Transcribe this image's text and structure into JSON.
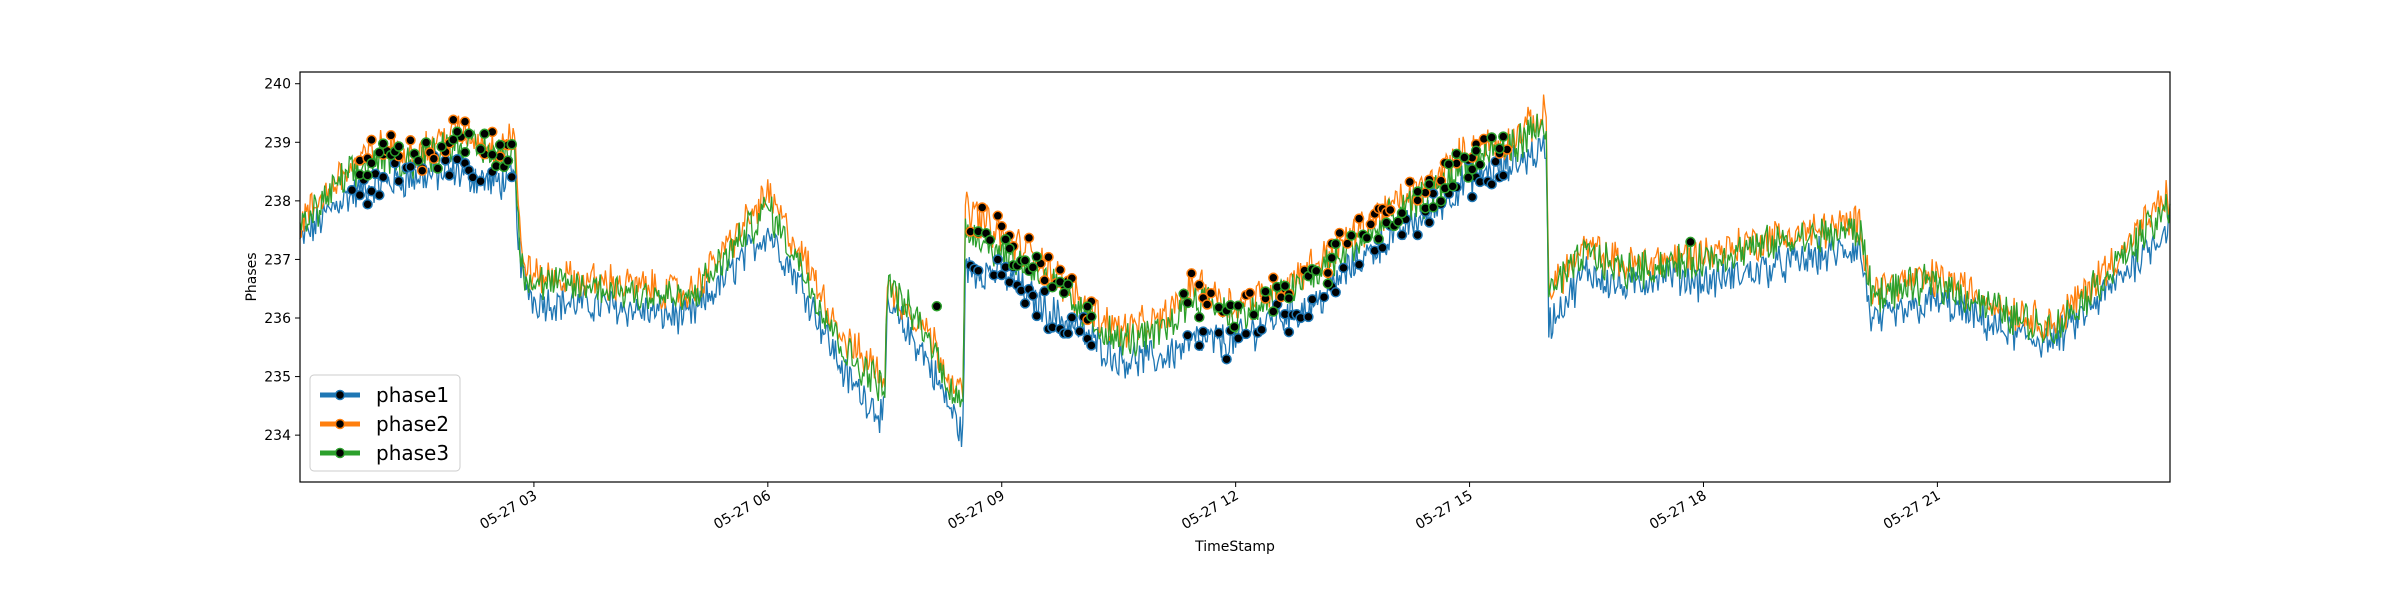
{
  "chart_data": {
    "type": "line",
    "title": "",
    "xlabel": "TimeStamp",
    "ylabel": "Phases",
    "xlim": [
      "05-27 00:00",
      "05-27 23:59"
    ],
    "ylim": [
      233.2,
      240.2
    ],
    "x_ticks": [
      "05-27 03",
      "05-27 06",
      "05-27 09",
      "05-27 12",
      "05-27 15",
      "05-27 18",
      "05-27 21"
    ],
    "y_ticks": [
      234,
      235,
      236,
      237,
      238,
      239,
      240
    ],
    "grid": false,
    "legend_position": "lower-left",
    "series": [
      {
        "name": "phase1",
        "color": "#1f77b4",
        "points": [
          [
            "00:00",
            237.3
          ],
          [
            "00:30",
            238.0
          ],
          [
            "01:00",
            238.3
          ],
          [
            "01:30",
            238.4
          ],
          [
            "02:00",
            238.5
          ],
          [
            "02:30",
            238.3
          ],
          [
            "02:45",
            238.4
          ],
          [
            "02:50",
            236.8
          ],
          [
            "03:00",
            236.3
          ],
          [
            "04:00",
            236.2
          ],
          [
            "05:00",
            236.0
          ],
          [
            "06:00",
            237.5
          ],
          [
            "06:30",
            236.4
          ],
          [
            "07:00",
            235.0
          ],
          [
            "07:30",
            234.3
          ],
          [
            "07:32",
            236.2
          ],
          [
            "08:00",
            235.4
          ],
          [
            "08:30",
            234.0
          ],
          [
            "08:32",
            236.8
          ],
          [
            "09:00",
            236.8
          ],
          [
            "09:30",
            236.2
          ],
          [
            "10:00",
            235.8
          ],
          [
            "10:30",
            235.3
          ],
          [
            "11:00",
            235.3
          ],
          [
            "11:30",
            235.6
          ],
          [
            "12:00",
            235.6
          ],
          [
            "12:30",
            236.0
          ],
          [
            "13:00",
            236.2
          ],
          [
            "13:30",
            236.9
          ],
          [
            "14:00",
            237.4
          ],
          [
            "14:30",
            237.8
          ],
          [
            "15:00",
            238.4
          ],
          [
            "15:30",
            238.6
          ],
          [
            "15:59",
            238.9
          ],
          [
            "16:01",
            235.9
          ],
          [
            "16:30",
            236.8
          ],
          [
            "17:00",
            236.5
          ],
          [
            "17:30",
            236.8
          ],
          [
            "18:00",
            236.6
          ],
          [
            "19:00",
            236.9
          ],
          [
            "20:00",
            237.2
          ],
          [
            "20:10",
            235.9
          ],
          [
            "21:00",
            236.3
          ],
          [
            "22:00",
            235.7
          ],
          [
            "22:30",
            235.6
          ],
          [
            "23:00",
            236.2
          ],
          [
            "23:59",
            237.6
          ]
        ]
      },
      {
        "name": "phase2",
        "color": "#ff7f0e",
        "points": [
          [
            "00:00",
            237.6
          ],
          [
            "00:30",
            238.4
          ],
          [
            "01:00",
            238.9
          ],
          [
            "01:30",
            238.8
          ],
          [
            "02:00",
            239.2
          ],
          [
            "02:30",
            238.9
          ],
          [
            "02:45",
            239.2
          ],
          [
            "02:50",
            237.1
          ],
          [
            "03:00",
            236.7
          ],
          [
            "04:00",
            236.6
          ],
          [
            "05:00",
            236.4
          ],
          [
            "06:00",
            238.1
          ],
          [
            "06:30",
            236.9
          ],
          [
            "07:00",
            235.6
          ],
          [
            "07:30",
            235.0
          ],
          [
            "07:32",
            236.5
          ],
          [
            "08:00",
            235.9
          ],
          [
            "08:30",
            234.6
          ],
          [
            "08:32",
            237.9
          ],
          [
            "09:00",
            237.4
          ],
          [
            "09:30",
            237.0
          ],
          [
            "10:00",
            236.3
          ],
          [
            "10:30",
            235.8
          ],
          [
            "11:00",
            235.9
          ],
          [
            "11:30",
            236.6
          ],
          [
            "12:00",
            236.2
          ],
          [
            "12:30",
            236.5
          ],
          [
            "13:00",
            236.9
          ],
          [
            "13:30",
            237.4
          ],
          [
            "14:00",
            237.9
          ],
          [
            "14:30",
            238.3
          ],
          [
            "15:00",
            238.9
          ],
          [
            "15:30",
            239.0
          ],
          [
            "15:59",
            239.5
          ],
          [
            "16:01",
            236.5
          ],
          [
            "16:30",
            237.2
          ],
          [
            "17:00",
            236.9
          ],
          [
            "17:30",
            237.0
          ],
          [
            "18:00",
            237.1
          ],
          [
            "19:00",
            237.4
          ],
          [
            "20:00",
            237.6
          ],
          [
            "20:10",
            236.5
          ],
          [
            "21:00",
            236.7
          ],
          [
            "22:00",
            236.1
          ],
          [
            "22:30",
            235.9
          ],
          [
            "23:00",
            236.6
          ],
          [
            "23:59",
            238.1
          ]
        ]
      },
      {
        "name": "phase3",
        "color": "#2ca02c",
        "points": [
          [
            "00:00",
            237.5
          ],
          [
            "00:30",
            238.3
          ],
          [
            "01:00",
            238.7
          ],
          [
            "01:30",
            238.7
          ],
          [
            "02:00",
            239.0
          ],
          [
            "02:30",
            238.8
          ],
          [
            "02:45",
            238.9
          ],
          [
            "02:50",
            236.9
          ],
          [
            "03:00",
            236.6
          ],
          [
            "04:00",
            236.5
          ],
          [
            "05:00",
            236.3
          ],
          [
            "06:00",
            237.9
          ],
          [
            "06:30",
            236.7
          ],
          [
            "07:00",
            235.4
          ],
          [
            "07:30",
            234.8
          ],
          [
            "07:32",
            236.6
          ],
          [
            "08:00",
            235.8
          ],
          [
            "08:30",
            234.4
          ],
          [
            "08:32",
            237.6
          ],
          [
            "09:00",
            237.1
          ],
          [
            "09:30",
            236.8
          ],
          [
            "10:00",
            236.1
          ],
          [
            "10:30",
            235.6
          ],
          [
            "11:00",
            235.7
          ],
          [
            "11:30",
            236.4
          ],
          [
            "12:00",
            236.0
          ],
          [
            "12:30",
            236.3
          ],
          [
            "13:00",
            236.7
          ],
          [
            "13:30",
            237.2
          ],
          [
            "14:00",
            237.7
          ],
          [
            "14:30",
            238.1
          ],
          [
            "15:00",
            238.7
          ],
          [
            "15:30",
            238.9
          ],
          [
            "15:59",
            239.3
          ],
          [
            "16:01",
            236.4
          ],
          [
            "16:30",
            237.1
          ],
          [
            "17:00",
            236.8
          ],
          [
            "17:30",
            236.9
          ],
          [
            "18:00",
            237.0
          ],
          [
            "19:00",
            237.3
          ],
          [
            "20:00",
            237.5
          ],
          [
            "20:10",
            236.4
          ],
          [
            "21:00",
            236.6
          ],
          [
            "22:00",
            236.0
          ],
          [
            "22:30",
            235.8
          ],
          [
            "23:00",
            236.5
          ],
          [
            "23:59",
            237.9
          ]
        ]
      }
    ],
    "markers": {
      "color": "#000000",
      "ranges": [
        [
          "00:40",
          "02:45"
        ],
        [
          "08:30",
          "10:10"
        ],
        [
          "11:20",
          "15:30"
        ]
      ],
      "isolated": [
        [
          "08:10",
          236.2
        ],
        [
          "17:50",
          237.3
        ]
      ]
    }
  }
}
